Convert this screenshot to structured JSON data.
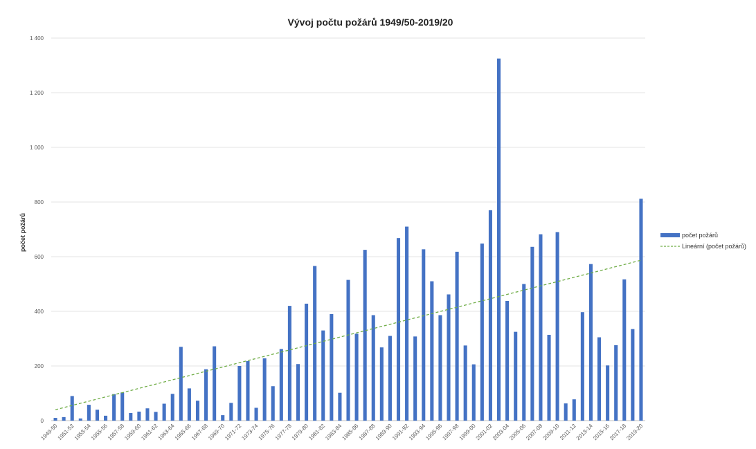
{
  "chart_data": {
    "type": "bar",
    "title": "Vývoj počtu požárů 1949/50-2019/20",
    "ylabel": "počet požárů",
    "xlabel": "",
    "ylim": [
      0,
      1400
    ],
    "yticks": [
      0,
      200,
      400,
      600,
      800,
      1000,
      1200,
      1400
    ],
    "ytick_labels": [
      "0",
      "200",
      "400",
      "600",
      "800",
      "1 000",
      "1 200",
      "1 400"
    ],
    "grid": true,
    "legend_position": "right",
    "categories": [
      "1949-50",
      "1950-51",
      "1951-52",
      "1952-53",
      "1953-54",
      "1954-55",
      "1955-56",
      "1956-57",
      "1957-58",
      "1958-59",
      "1959-60",
      "1960-61",
      "1961-62",
      "1962-63",
      "1963-64",
      "1964-65",
      "1965-66",
      "1966-67",
      "1967-68",
      "1968-69",
      "1969-70",
      "1970-71",
      "1971-72",
      "1972-73",
      "1973-74",
      "1974-75",
      "1975-76",
      "1976-77",
      "1977-78",
      "1978-79",
      "1979-80",
      "1980-81",
      "1981-82",
      "1982-83",
      "1983-84",
      "1984-85",
      "1985-86",
      "1986-87",
      "1987-88",
      "1988-89",
      "1989-90",
      "1990-91",
      "1991-92",
      "1992-93",
      "1993-94",
      "1994-95",
      "1995-96",
      "1996-97",
      "1997-98",
      "1998-99",
      "1999-00",
      "2000-01",
      "2001-02",
      "2002-03",
      "2003-04",
      "2004-05",
      "2005-06",
      "2006-07",
      "2007-08",
      "2008-09",
      "2009-10",
      "2010-11",
      "2011-12",
      "2012-13",
      "2013-14",
      "2014-15",
      "2015-16",
      "2016-17",
      "2017-18",
      "2018-19",
      "2019-20"
    ],
    "x_tick_labels": [
      "1949-50",
      "1951-52",
      "1953-54",
      "1955-56",
      "1957-58",
      "1959-60",
      "1961-62",
      "1963-64",
      "1965-66",
      "1967-68",
      "1969-70",
      "1971-72",
      "1973-74",
      "1975-76",
      "1977-78",
      "1979-80",
      "1981-82",
      "1983-84",
      "1985-86",
      "1987-88",
      "1989-90",
      "1991-92",
      "1993-94",
      "1995-96",
      "1997-98",
      "1999-00",
      "2001-02",
      "2003-04",
      "2005-06",
      "2007-08",
      "2009-10",
      "2011-12",
      "2013-14",
      "2015-16",
      "2017-18",
      "2019-20"
    ],
    "series": [
      {
        "name": "počet požárů",
        "color": "#4472c4",
        "values": [
          10,
          13,
          90,
          8,
          58,
          40,
          18,
          97,
          103,
          28,
          33,
          45,
          32,
          62,
          98,
          270,
          118,
          73,
          188,
          272,
          20,
          65,
          200,
          218,
          47,
          228,
          126,
          262,
          420,
          207,
          428,
          566,
          330,
          390,
          102,
          515,
          318,
          625,
          386,
          268,
          310,
          668,
          710,
          308,
          627,
          510,
          386,
          462,
          618,
          275,
          206,
          648,
          770,
          1325,
          438,
          325,
          500,
          636,
          682,
          314,
          690,
          63,
          78,
          397,
          573,
          305,
          202,
          276,
          517,
          335,
          812
        ]
      },
      {
        "name": "Lineární (počet požárů)",
        "type": "trendline",
        "color": "#70ad47",
        "dash": true,
        "start": [
          0,
          40
        ],
        "end": [
          70,
          587
        ]
      }
    ]
  }
}
